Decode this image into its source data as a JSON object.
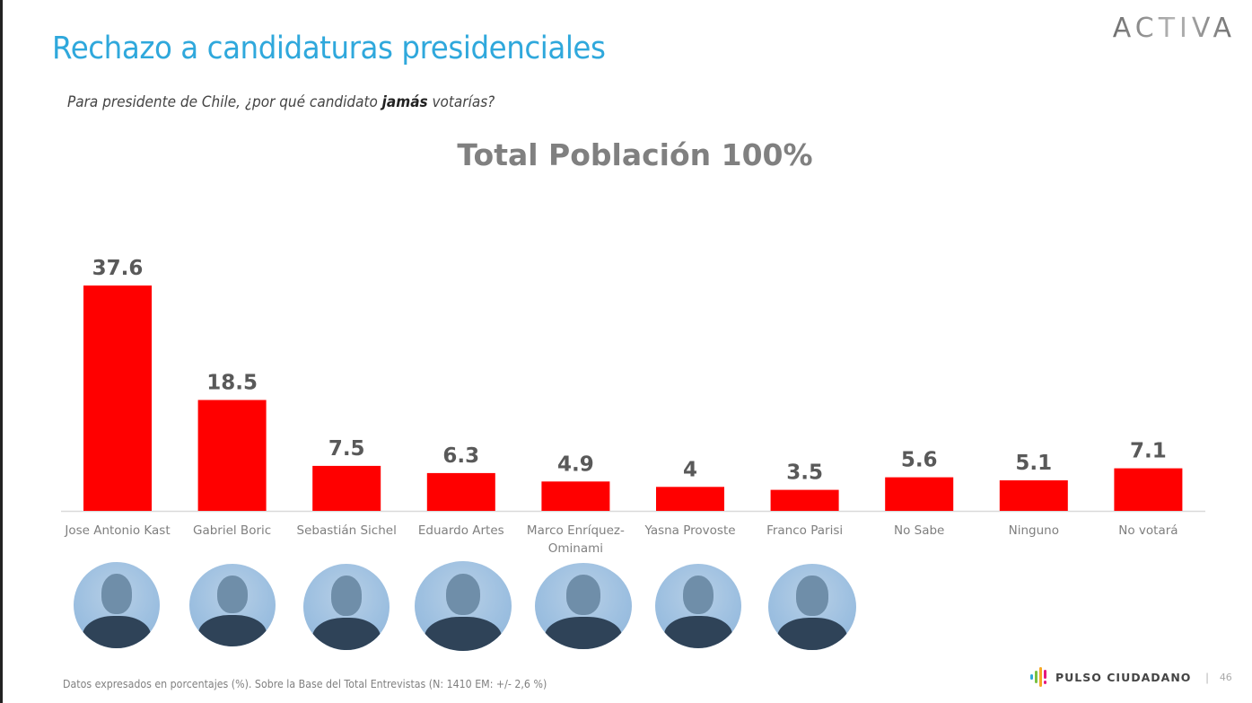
{
  "header": {
    "title": "Rechazo a candidaturas presidenciales",
    "subtitle_before": "Para presidente de Chile, ¿por qué candidato ",
    "subtitle_emphasis": "jamás",
    "subtitle_after": " votarías?",
    "brand": "ACTIVA"
  },
  "colors": {
    "title": "#2fa8dc",
    "bar": "#ff0000",
    "bar_label": "#595959",
    "category_label": "#7f7f7f",
    "axis": "#d9d9d9"
  },
  "chart_data": {
    "type": "bar",
    "title": "Total Población 100%",
    "xlabel": "",
    "ylabel": "",
    "ylim": [
      0,
      37.6
    ],
    "grid": false,
    "legend": "none",
    "categories": [
      "Jose Antonio Kast",
      "Gabriel Boric",
      "Sebastián Sichel",
      "Eduardo Artes",
      "Marco Enríquez-Ominami",
      "Yasna Provoste",
      "Franco Parisi",
      "No Sabe",
      "Ninguno",
      "No votará"
    ],
    "category_label_lines": [
      [
        "Jose Antonio Kast"
      ],
      [
        "Gabriel Boric"
      ],
      [
        "Sebastián Sichel"
      ],
      [
        "Eduardo Artes"
      ],
      [
        "Marco Enríquez-",
        "Ominami"
      ],
      [
        "Yasna Provoste"
      ],
      [
        "Franco Parisi"
      ],
      [
        "No Sabe"
      ],
      [
        "Ninguno"
      ],
      [
        "No votará"
      ]
    ],
    "values": [
      37.6,
      18.5,
      7.5,
      6.3,
      4.9,
      4,
      3.5,
      5.6,
      5.1,
      7.1
    ],
    "value_labels": [
      "37.6",
      "18.5",
      "7.5",
      "6.3",
      "4.9",
      "4",
      "3.5",
      "5.6",
      "5.1",
      "7.1"
    ],
    "unit": "%"
  },
  "candidate_photos": [
    {
      "name": "Jose Antonio Kast",
      "icon": "candidate-photo"
    },
    {
      "name": "Gabriel Boric",
      "icon": "candidate-photo"
    },
    {
      "name": "Sebastián Sichel",
      "icon": "candidate-photo"
    },
    {
      "name": "Eduardo Artes",
      "icon": "candidate-photo"
    },
    {
      "name": "Marco Enríquez-Ominami",
      "icon": "candidate-photo"
    },
    {
      "name": "Yasna Provoste",
      "icon": "candidate-photo"
    },
    {
      "name": "Franco Parisi",
      "icon": "candidate-photo"
    }
  ],
  "footer": {
    "note": "Datos expresados en porcentajes (%). Sobre la Base del Total Entrevistas (N: 1410  EM: +/- 2,6 %)",
    "brand": "PULSO CIUDADANO",
    "separator": "|",
    "page_number": "46",
    "logo_colors": [
      "#2fa8dc",
      "#7ac143",
      "#f7a823",
      "#e6197f",
      "#e6197f"
    ]
  }
}
